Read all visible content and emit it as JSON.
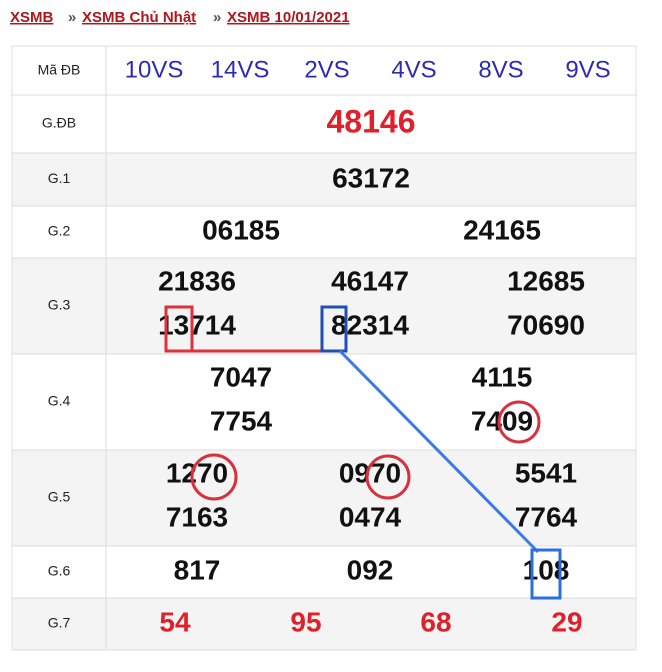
{
  "breadcrumb": {
    "items": [
      "XSMB",
      "XSMB Chủ Nhật",
      "XSMB 10/01/2021"
    ],
    "separator": "»"
  },
  "table": {
    "header": {
      "label": "Mã ĐB",
      "codes": [
        "10VS",
        "14VS",
        "2VS",
        "4VS",
        "8VS",
        "9VS"
      ]
    },
    "rows": [
      {
        "label": "G.ĐB",
        "numbers": [
          "48146"
        ]
      },
      {
        "label": "G.1",
        "numbers": [
          "63172"
        ]
      },
      {
        "label": "G.2",
        "numbers": [
          "06185",
          "24165"
        ]
      },
      {
        "label": "G.3",
        "numbers": [
          "21836",
          "46147",
          "12685",
          "13714",
          "82314",
          "70690"
        ]
      },
      {
        "label": "G.4",
        "numbers": [
          "7047",
          "4115",
          "7754",
          "7409"
        ]
      },
      {
        "label": "G.5",
        "numbers": [
          "1270",
          "0970",
          "5541",
          "7163",
          "0474",
          "7764"
        ]
      },
      {
        "label": "G.6",
        "numbers": [
          "817",
          "092",
          "108"
        ]
      },
      {
        "label": "G.7",
        "numbers": [
          "54",
          "95",
          "68",
          "29"
        ]
      }
    ]
  }
}
